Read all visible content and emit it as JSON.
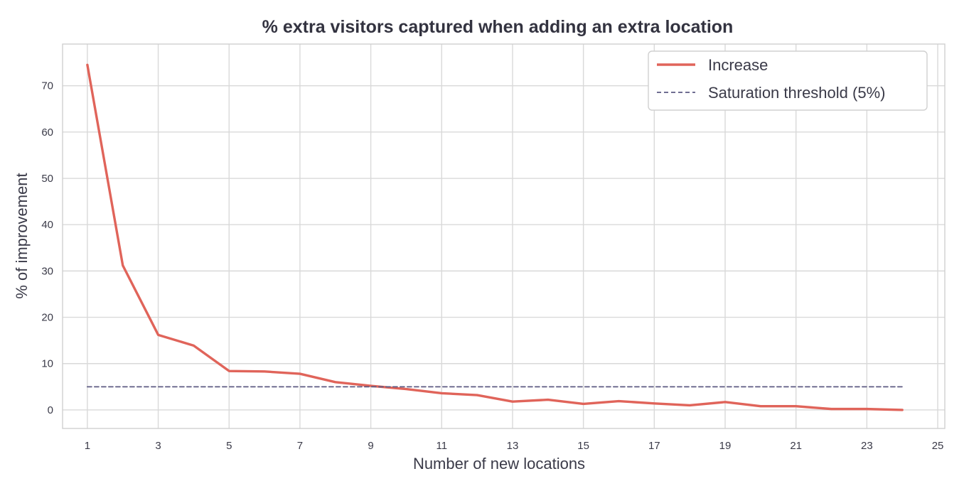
{
  "chart_data": {
    "type": "line",
    "title": "% extra visitors captured when adding an extra location",
    "xlabel": "Number of new locations",
    "ylabel": "% of improvement",
    "xlim": [
      0.3,
      25.2
    ],
    "ylim": [
      -4,
      79
    ],
    "xticks": [
      1,
      3,
      5,
      7,
      9,
      11,
      13,
      15,
      17,
      19,
      21,
      23,
      25
    ],
    "yticks": [
      0,
      10,
      20,
      30,
      40,
      50,
      60,
      70
    ],
    "grid": true,
    "legend_position": "top-right",
    "series": [
      {
        "name": "Increase",
        "color": "#e0645a",
        "style": "solid",
        "x": [
          1,
          2,
          3,
          4,
          5,
          6,
          7,
          8,
          9,
          10,
          11,
          12,
          13,
          14,
          15,
          16,
          17,
          18,
          19,
          20,
          21,
          22,
          23,
          24
        ],
        "y": [
          74.5,
          31.2,
          16.2,
          13.9,
          8.4,
          8.3,
          7.8,
          6.0,
          5.2,
          4.5,
          3.6,
          3.2,
          1.8,
          2.2,
          1.3,
          1.9,
          1.4,
          1.0,
          1.7,
          0.8,
          0.8,
          0.2,
          0.2,
          0.0
        ]
      },
      {
        "name": "Saturation threshold (5%)",
        "color": "#5c5a82",
        "style": "dashed",
        "x": [
          1,
          24
        ],
        "y": [
          5,
          5
        ]
      }
    ]
  }
}
